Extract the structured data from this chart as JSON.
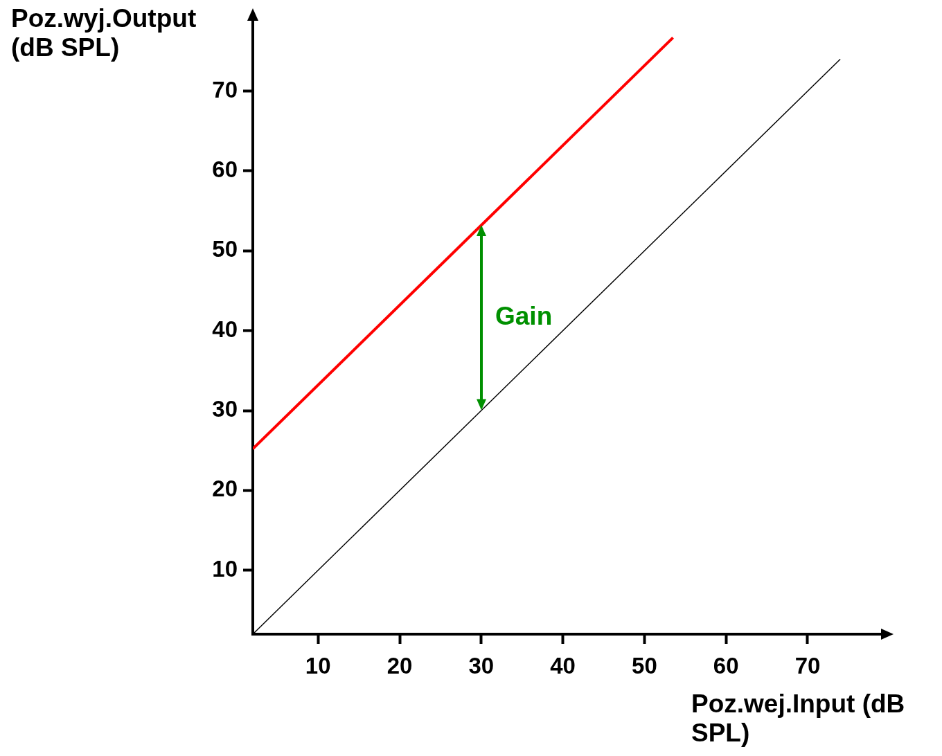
{
  "chart_data": {
    "type": "line",
    "xlabel": "Poz.wej.Input (dB SPL)",
    "ylabel": "Poz.wyj.Output (dB SPL)",
    "series": [
      {
        "color": "#ff0000",
        "x": [
          2,
          53.5
        ],
        "values": [
          25.2,
          76.7
        ]
      },
      {
        "color": "#000000",
        "x": [
          2,
          74
        ],
        "values": [
          2,
          74
        ]
      }
    ],
    "xlim": [
      2,
      79
    ],
    "ylim": [
      2,
      79
    ],
    "xticks": [
      10,
      20,
      30,
      40,
      50,
      60,
      70
    ],
    "yticks": [
      10,
      20,
      30,
      40,
      50,
      60,
      70
    ],
    "grid": false,
    "legend": false,
    "marker": "none",
    "line_style": "solid",
    "annotations": [
      "Gain"
    ]
  }
}
